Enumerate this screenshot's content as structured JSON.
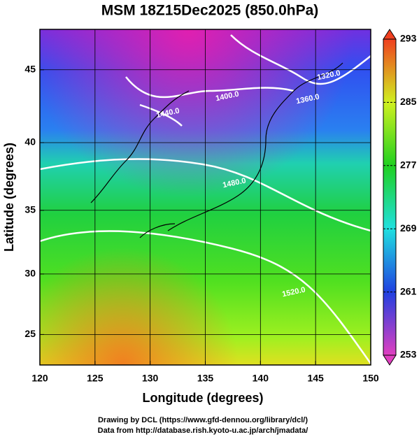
{
  "chart_data": {
    "type": "map",
    "title": "MSM 18Z15Dec2025 (850.0hPa)",
    "x_label": "Longitude (degrees)",
    "y_label": "Latitude  (degrees)",
    "projection": "mercator",
    "grid": true,
    "xlim": [
      120,
      150
    ],
    "xticks": [
      120,
      125,
      130,
      135,
      140,
      145,
      150
    ],
    "ylim": [
      22.4,
      47.6
    ],
    "yticks": [
      25,
      30,
      35,
      40,
      45
    ],
    "colorbar": {
      "lim": [
        253,
        293
      ],
      "ticks": [
        253,
        261,
        269,
        277,
        285,
        293
      ],
      "colors": [
        "#e040c0",
        "#2040e0",
        "#20e0e0",
        "#20d020",
        "#d0f020",
        "#f04020"
      ]
    },
    "contour_labels": [
      "1320.0",
      "1360.0",
      "1400.0",
      "1440.0",
      "1480.0",
      "1520.0"
    ],
    "footer": [
      "Drawing by DCL (https://www.gfd-dennou.org/library/dcl/)",
      "Data from http://database.rish.kyoto-u.ac.jp/arch/jmadata/"
    ]
  }
}
